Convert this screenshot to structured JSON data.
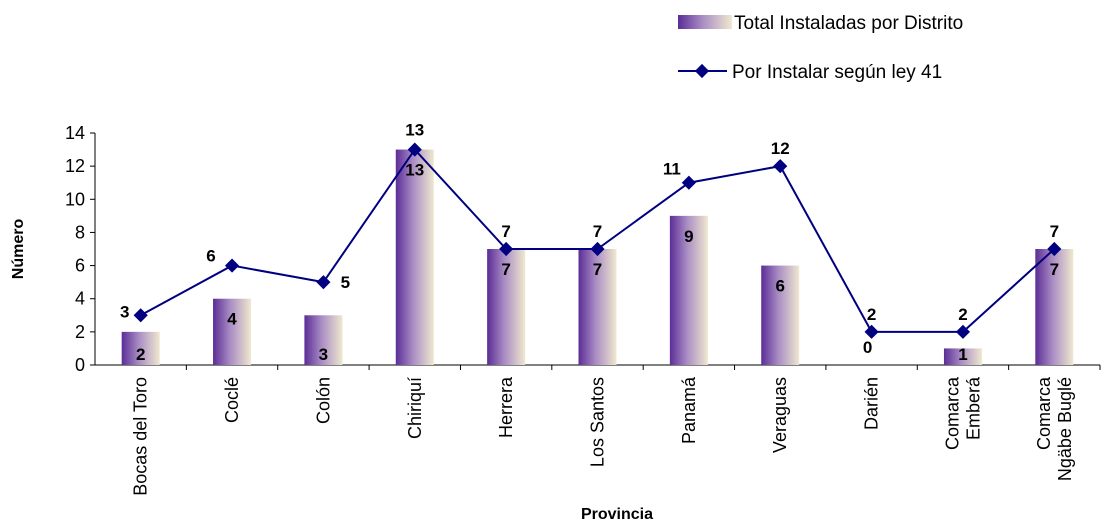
{
  "chart_data": {
    "type": "bar",
    "title": "",
    "xlabel": "Provincia",
    "ylabel": "Número",
    "ylim": [
      0,
      14
    ],
    "yticks": [
      "0",
      "2",
      "4",
      "6",
      "8",
      "10",
      "12",
      "14"
    ],
    "grid": false,
    "legend_position": "top-right",
    "categories": [
      [
        "Bocas del Toro"
      ],
      [
        "Coclé"
      ],
      [
        "Colón"
      ],
      [
        "Chiriquí"
      ],
      [
        "Herrera"
      ],
      [
        "Los Santos"
      ],
      [
        "Panamá"
      ],
      [
        "Veraguas"
      ],
      [
        "Darién"
      ],
      [
        "Comarca",
        "Emberá"
      ],
      [
        "Comarca",
        "Ngäbe Buglé"
      ]
    ],
    "series": [
      {
        "name": "Total Instaladas por Distrito",
        "type": "bar",
        "values": [
          2,
          4,
          3,
          13,
          7,
          7,
          9,
          6,
          0,
          1,
          7
        ],
        "labels": [
          "2",
          "4",
          "3",
          "13",
          "7",
          "7",
          "9",
          "6",
          "0",
          "1",
          "7"
        ],
        "color": "#6b3fa0"
      },
      {
        "name": "Por Instalar según ley 41",
        "type": "line",
        "values": [
          3,
          6,
          5,
          13,
          7,
          7,
          11,
          12,
          2,
          2,
          7
        ],
        "labels": [
          "3",
          "6",
          "5",
          "13",
          "7",
          "7",
          "11",
          "12",
          "2",
          "2",
          "7"
        ],
        "color": "#000080"
      }
    ]
  }
}
